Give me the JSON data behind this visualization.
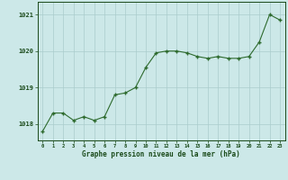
{
  "x": [
    0,
    1,
    2,
    3,
    4,
    5,
    6,
    7,
    8,
    9,
    10,
    11,
    12,
    13,
    14,
    15,
    16,
    17,
    18,
    19,
    20,
    21,
    22,
    23
  ],
  "y": [
    1017.8,
    1018.3,
    1018.3,
    1018.1,
    1018.2,
    1018.1,
    1018.2,
    1018.8,
    1018.85,
    1019.0,
    1019.55,
    1019.95,
    1020.0,
    1020.0,
    1019.95,
    1019.85,
    1019.8,
    1019.85,
    1019.8,
    1019.8,
    1019.85,
    1020.25,
    1021.0,
    1020.85
  ],
  "line_color": "#2d6a2d",
  "marker_color": "#2d6a2d",
  "bg_color": "#cce8e8",
  "grid_color": "#aacccc",
  "title": "Graphe pression niveau de la mer (hPa)",
  "title_color": "#1a4a1a",
  "yticks": [
    1018,
    1019,
    1020,
    1021
  ],
  "xticks": [
    0,
    1,
    2,
    3,
    4,
    5,
    6,
    7,
    8,
    9,
    10,
    11,
    12,
    13,
    14,
    15,
    16,
    17,
    18,
    19,
    20,
    21,
    22,
    23
  ],
  "ylim": [
    1017.55,
    1021.35
  ],
  "xlim": [
    -0.5,
    23.5
  ]
}
